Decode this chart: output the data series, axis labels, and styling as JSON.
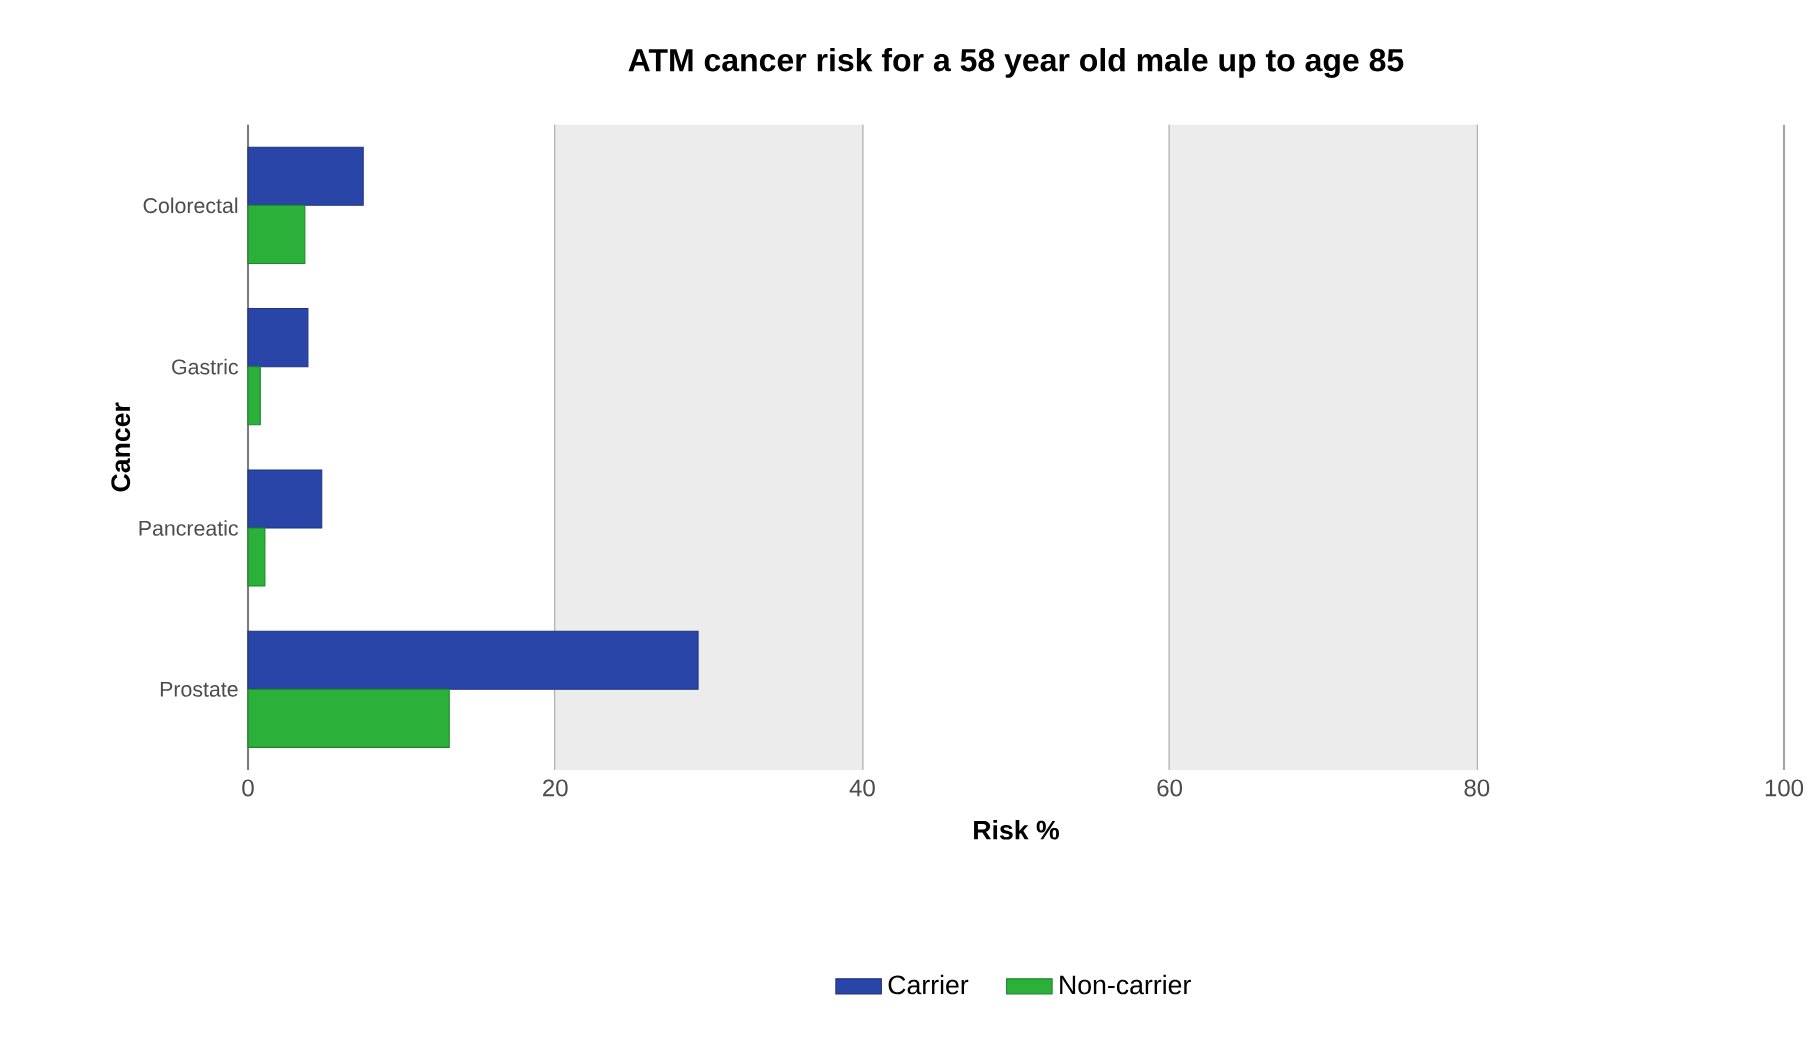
{
  "chart_data": {
    "type": "bar",
    "orientation": "horizontal",
    "title": "ATM cancer risk for a 58 year old male up to age 85",
    "xlabel": "Risk %",
    "ylabel": "Cancer",
    "categories": [
      "Colorectal",
      "Gastric",
      "Pancreatic",
      "Prostate"
    ],
    "series": [
      {
        "name": "Carrier",
        "color": "#2a45a8",
        "values": [
          7.5,
          3.9,
          4.8,
          29.3
        ]
      },
      {
        "name": "Non-carrier",
        "color": "#2bb03a",
        "values": [
          3.7,
          0.8,
          1.1,
          13.1
        ]
      }
    ],
    "xlim": [
      0,
      100
    ],
    "xticks": [
      0,
      20,
      40,
      60,
      80,
      100
    ],
    "bands": [
      {
        "axis": "x",
        "from": 20,
        "to": 40,
        "color": "#ececec"
      },
      {
        "axis": "x",
        "from": 60,
        "to": 80,
        "color": "#ececec"
      }
    ],
    "grid": "x",
    "legend": "bottom"
  }
}
